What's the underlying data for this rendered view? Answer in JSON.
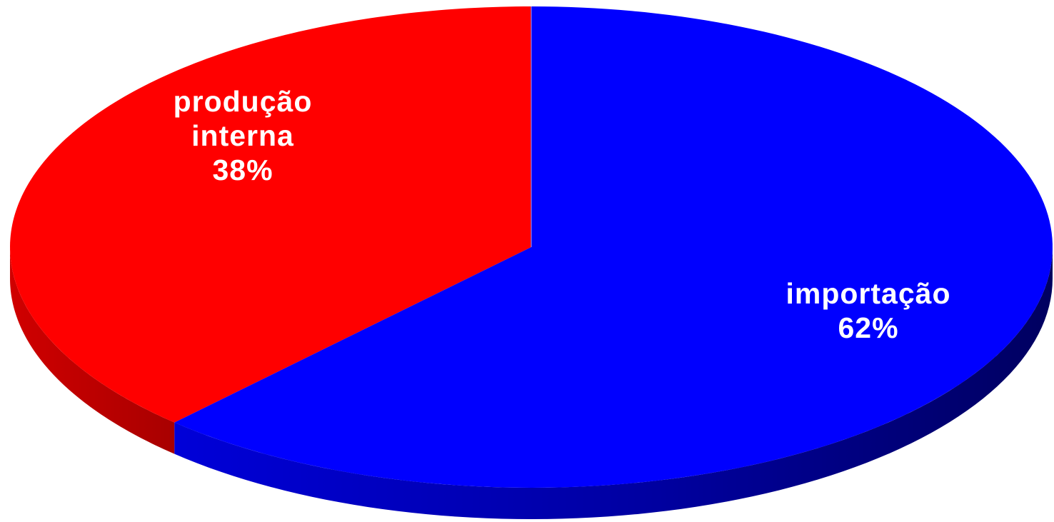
{
  "chart_data": {
    "type": "pie",
    "style": "3d",
    "categories": [
      "produção interna",
      "importação"
    ],
    "values": [
      38,
      62
    ],
    "labels": [
      {
        "lines": [
          "produção",
          "interna",
          "38%"
        ]
      },
      {
        "lines": [
          "importação",
          "62%"
        ]
      }
    ],
    "colors": {
      "produção interna": {
        "top": "#ff0000",
        "side": "#c00000",
        "side_dark": "#8a0000"
      },
      "importação": {
        "top": "#0000ff",
        "side": "#0000a8",
        "side_dark": "#000060"
      }
    },
    "start_angle_deg": 0,
    "direction": "clockwise",
    "legend": "none",
    "title": ""
  }
}
